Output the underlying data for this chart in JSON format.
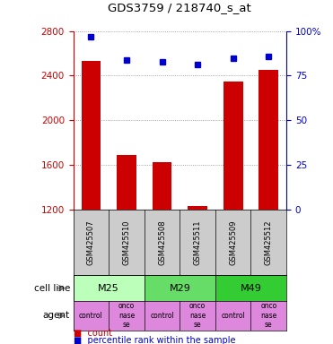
{
  "title": "GDS3759 / 218740_s_at",
  "samples": [
    "GSM425507",
    "GSM425510",
    "GSM425508",
    "GSM425511",
    "GSM425509",
    "GSM425512"
  ],
  "counts": [
    2530,
    1690,
    1630,
    1230,
    2350,
    2450
  ],
  "percentiles": [
    97,
    84,
    83,
    81,
    85,
    86
  ],
  "ylim_left": [
    1200,
    2800
  ],
  "ylim_right": [
    0,
    100
  ],
  "yticks_left": [
    1200,
    1600,
    2000,
    2400,
    2800
  ],
  "yticks_right": [
    0,
    25,
    50,
    75,
    100
  ],
  "cell_lines": [
    {
      "label": "M25",
      "span": [
        0,
        2
      ],
      "color": "#bbffbb"
    },
    {
      "label": "M29",
      "span": [
        2,
        4
      ],
      "color": "#66dd66"
    },
    {
      "label": "M49",
      "span": [
        4,
        6
      ],
      "color": "#33cc33"
    }
  ],
  "agents": [
    "control",
    "onconase\nse",
    "control",
    "onconase\nse",
    "control",
    "onconase\nse"
  ],
  "agent_display": [
    "control",
    "onco\nnase\nse",
    "control",
    "onco\nnase\nse",
    "control",
    "onco\nnase\nse"
  ],
  "bar_color": "#cc0000",
  "dot_color": "#0000cc",
  "bar_width": 0.55,
  "tick_color_left": "#cc0000",
  "tick_color_right": "#0000cc",
  "grid_color": "#888888",
  "sample_bg": "#cccccc",
  "agent_bg": "#dd88dd"
}
